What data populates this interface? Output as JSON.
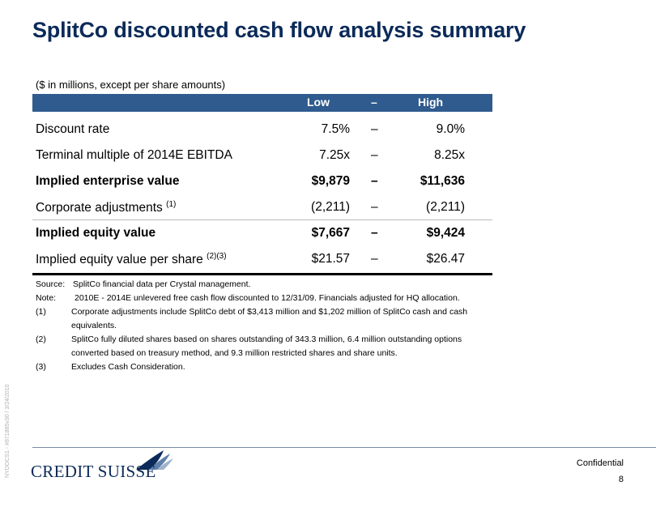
{
  "title": "SplitCo discounted cash flow analysis summary",
  "units_note": "($ in millions, except per share amounts)",
  "table": {
    "header": {
      "low": "Low",
      "dash": "–",
      "high": "High"
    },
    "rows": [
      {
        "label": "Discount rate",
        "sup": "",
        "low": "7.5%",
        "dash": "–",
        "high": "9.0%",
        "bold": false
      },
      {
        "label": "Terminal multiple of 2014E EBITDA",
        "sup": "",
        "low": "7.25x",
        "dash": "–",
        "high": "8.25x",
        "bold": false
      },
      {
        "label": "Implied enterprise value",
        "sup": "",
        "low": "$9,879",
        "dash": "–",
        "high": "$11,636",
        "bold": true
      },
      {
        "label": "Corporate adjustments",
        "sup": "(1)",
        "low": "(2,211)",
        "dash": "–",
        "high": "(2,211)",
        "bold": false
      },
      {
        "label": "Implied equity value",
        "sup": "",
        "low": "$7,667",
        "dash": "–",
        "high": "$9,424",
        "bold": true
      },
      {
        "label": "Implied equity value per share",
        "sup": "(2)(3)",
        "low": "$21.57",
        "dash": "–",
        "high": "$26.47",
        "bold": false
      }
    ]
  },
  "notes": [
    {
      "key": "Source:",
      "text": "SplitCo financial data per Crystal management."
    },
    {
      "key": "Note:",
      "text": "2010E - 2014E unlevered free cash flow discounted to 12/31/09. Financials adjusted for HQ allocation."
    },
    {
      "key": "(1)",
      "text": "Corporate adjustments include SplitCo debt of $3,413 million and $1,202 million of SplitCo cash and cash",
      "cont": "equivalents."
    },
    {
      "key": "(2)",
      "text": "SplitCo fully diluted shares based on shares outstanding of 343.3 million, 6.4 million outstanding options",
      "cont": "converted based on treasury method, and 9.3 million restricted shares and share units."
    },
    {
      "key": "(3)",
      "text": "Excludes Cash Consideration."
    }
  ],
  "side_text": "NYDOCS1 - #871885v30 / 3/24/2010",
  "footer": {
    "logo_text": "Credit Suisse",
    "confidential": "Confidential",
    "page_number": "8"
  },
  "colors": {
    "brand": "#0b2a59",
    "header_bar": "#2f5b8e"
  }
}
